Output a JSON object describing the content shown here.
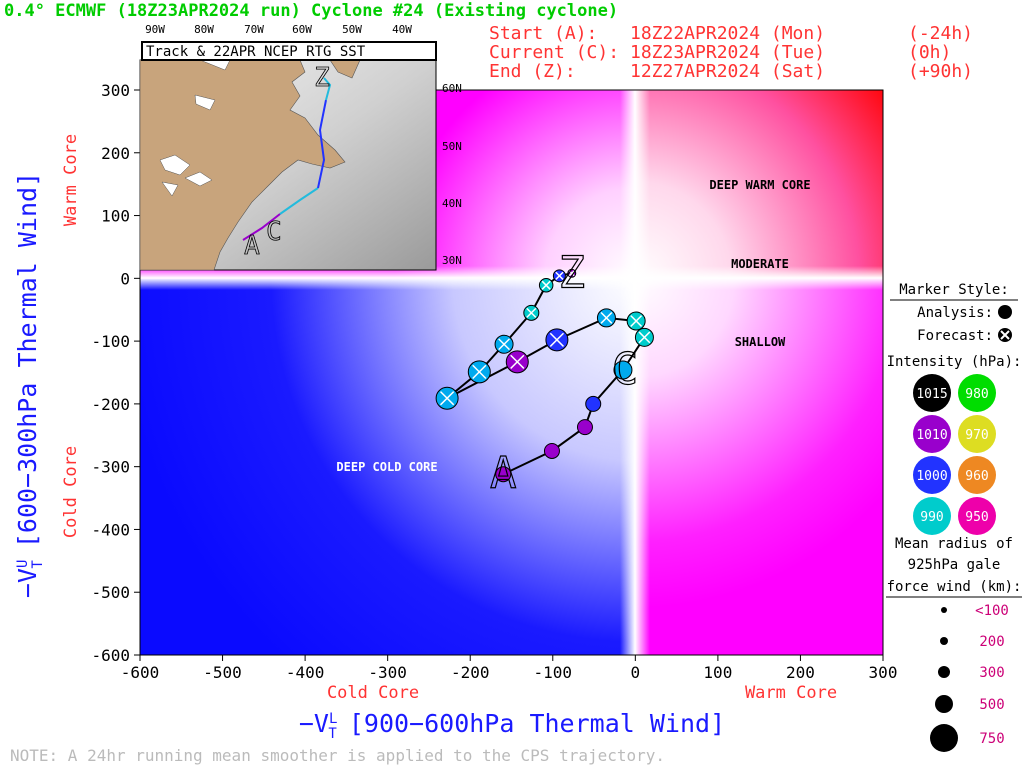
{
  "chart_data": {
    "type": "scatter",
    "title": "0.4° ECMWF (18Z23APR2024 run) Cyclone #24 (Existing cyclone)",
    "info": [
      {
        "label": "Start (A):",
        "date": "18Z22APR2024 (Mon)",
        "offset": "(-24h)"
      },
      {
        "label": "Current (C):",
        "date": "18Z23APR2024 (Tue)",
        "offset": "(0h)"
      },
      {
        "label": "End (Z):",
        "date": "12Z27APR2024 (Sat)",
        "offset": "(+90h)"
      }
    ],
    "x_label": {
      "symbol": "−V",
      "sup": "L",
      "sub": "T",
      "text": "[900−600hPa Thermal Wind]"
    },
    "y_label": {
      "symbol": "−V",
      "sup": "U",
      "sub": "T",
      "text": "[600−300hPa Thermal Wind]"
    },
    "x_core_labels": [
      "Cold Core",
      "Warm Core"
    ],
    "y_core_labels": [
      "Cold Core",
      "Warm Core"
    ],
    "regions": [
      "DEEP WARM CORE",
      "MODERATE",
      "SHALLOW",
      "DEEP COLD CORE"
    ],
    "note": "NOTE:  A 24hr running mean smoother is applied to the CPS trajectory.",
    "xlim": [
      -600,
      300
    ],
    "ylim": [
      -600,
      300
    ],
    "xticks": [
      -600,
      -500,
      -400,
      -300,
      -200,
      -100,
      0,
      100,
      200,
      300
    ],
    "yticks": [
      -600,
      -500,
      -400,
      -300,
      -200,
      -100,
      0,
      100,
      200,
      300
    ],
    "series": [
      {
        "name": "Analysis:",
        "x": [
          -160,
          -101,
          -61,
          -51,
          -15
        ],
        "y": [
          -312,
          -275,
          -237,
          -200,
          -146
        ],
        "radius_km": [
          400,
          400,
          400,
          400,
          500
        ],
        "colors": [
          "#9900cc",
          "#9900cc",
          "#9900cc",
          "#2233ff",
          "#00aaee"
        ],
        "labels": [
          "A",
          null,
          null,
          null,
          "C"
        ]
      },
      {
        "name": "Forecast:",
        "x": [
          11,
          1,
          -35,
          -95,
          -143,
          -228,
          -189,
          -159,
          -126,
          -108,
          -92,
          -77
        ],
        "y": [
          -94,
          -68,
          -63,
          -98,
          -133,
          -191,
          -149,
          -105,
          -55,
          -11,
          4,
          8
        ],
        "radius_km": [
          500,
          500,
          500,
          600,
          600,
          600,
          600,
          500,
          400,
          350,
          300,
          200
        ],
        "colors": [
          "#00cccc",
          "#00cccc",
          "#00aaee",
          "#2233ff",
          "#9900cc",
          "#00aaee",
          "#00aaee",
          "#00aaee",
          "#00cccc",
          "#00cccc",
          "#2233ff",
          "#9900cc"
        ],
        "labels": [
          null,
          null,
          null,
          null,
          null,
          null,
          null,
          null,
          null,
          null,
          null,
          "Z"
        ]
      }
    ],
    "legend": {
      "marker_title": "Marker Style:",
      "intensity_title": "Intensity (hPa):",
      "intensity": [
        {
          "value": 1015,
          "color": "#000000"
        },
        {
          "value": 980,
          "color": "#00dd00"
        },
        {
          "value": 1010,
          "color": "#9900cc"
        },
        {
          "value": 970,
          "color": "#dddd22"
        },
        {
          "value": 1000,
          "color": "#2233ff"
        },
        {
          "value": 960,
          "color": "#ee8822"
        },
        {
          "value": 990,
          "color": "#00cccc"
        },
        {
          "value": 950,
          "color": "#ee00aa"
        }
      ],
      "size_title": [
        "Mean radius of",
        "925hPa gale",
        "force wind (km):"
      ],
      "sizes": [
        {
          "value": 100,
          "label": "<100"
        },
        200,
        300,
        500,
        750
      ]
    }
  },
  "map": {
    "title": "Track & 22APR NCEP RTG SST",
    "lon_labels": [
      "90W",
      "80W",
      "70W",
      "60W",
      "50W",
      "40W"
    ],
    "lat_labels": [
      "60N",
      "50N",
      "40N",
      "30N"
    ]
  }
}
